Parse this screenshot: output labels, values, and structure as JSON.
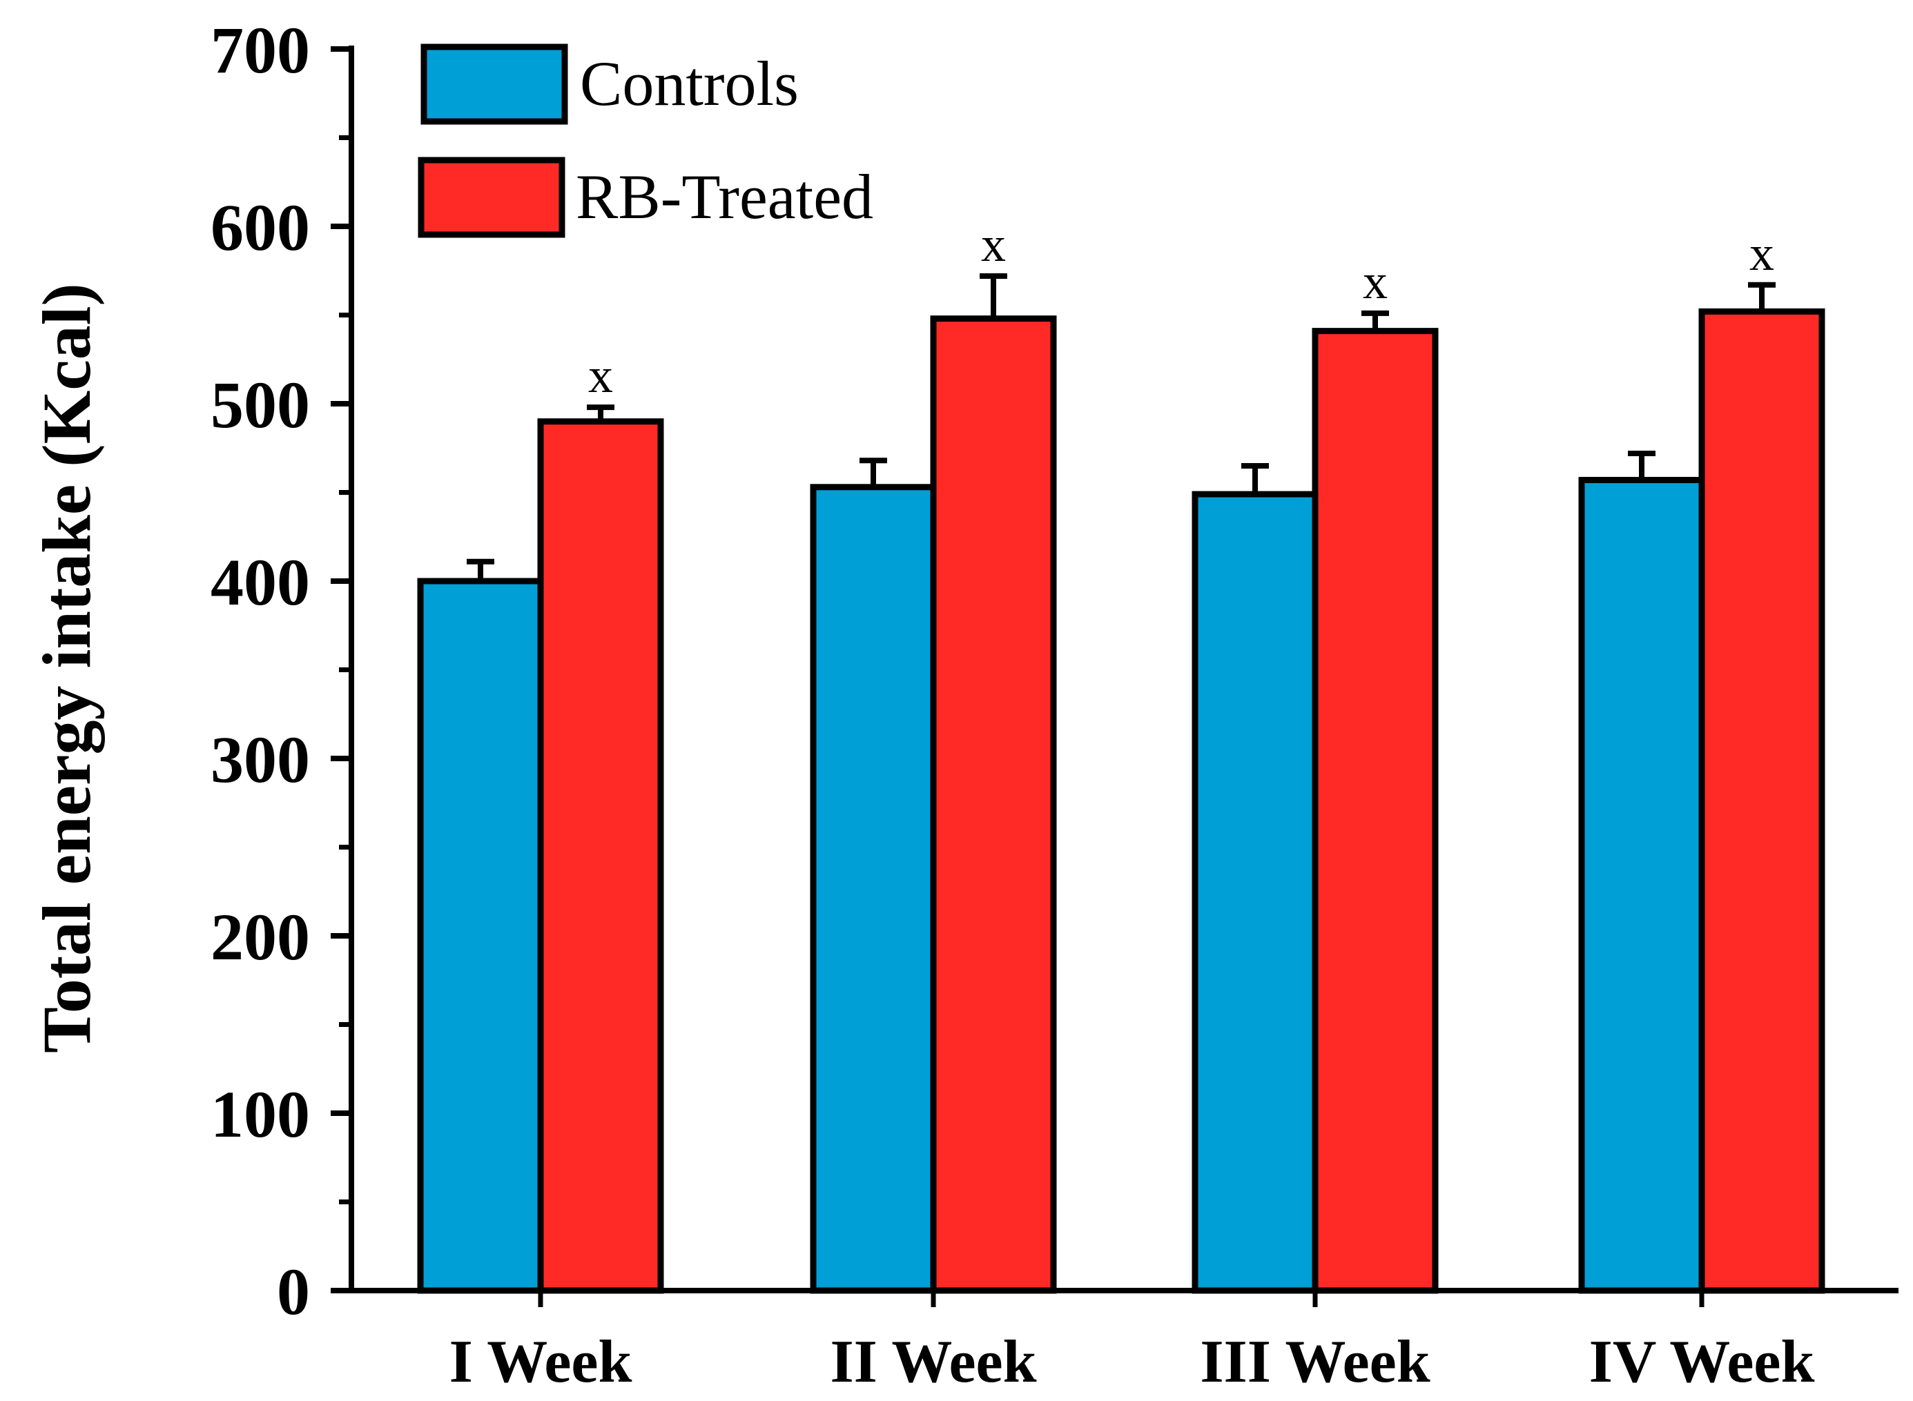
{
  "chart_data": {
    "type": "bar",
    "title": "",
    "xlabel": "",
    "ylabel": "Total energy intake (Kcal)",
    "ylim": [
      0,
      700
    ],
    "yticks": [
      "0",
      "100",
      "200",
      "300",
      "400",
      "500",
      "600",
      "700"
    ],
    "categories": [
      "I Week",
      "II Week",
      "III Week",
      "IV Week"
    ],
    "series": [
      {
        "name": "Controls",
        "color": "#009fd6",
        "values": [
          400,
          453,
          449,
          457
        ],
        "error": [
          11,
          15,
          16,
          15
        ]
      },
      {
        "name": "RB-Treated",
        "color": "#ff2a25",
        "values": [
          490,
          548,
          541,
          552
        ],
        "error": [
          8,
          24,
          10,
          15
        ]
      }
    ],
    "annotations": [
      "x",
      "x",
      "x",
      "x"
    ],
    "legend_position": "top-left",
    "grid": false
  }
}
